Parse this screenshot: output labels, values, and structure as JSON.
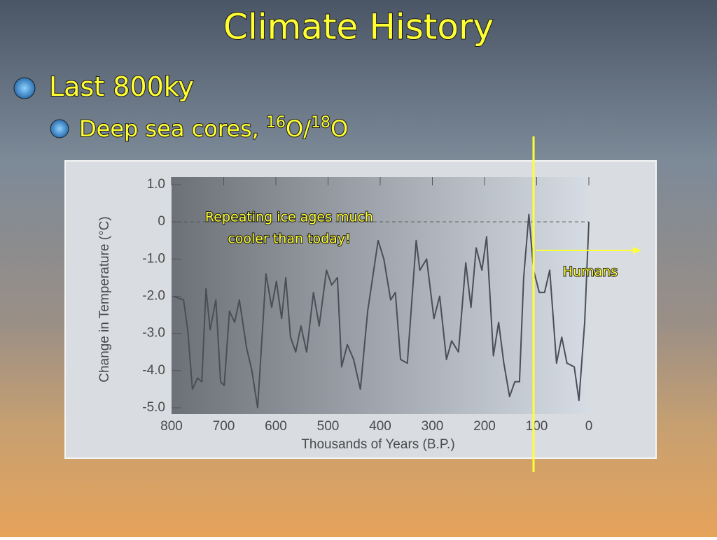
{
  "slide": {
    "title": "Climate History",
    "bullets": [
      {
        "segments": [
          {
            "text": "Last 800ky"
          }
        ]
      },
      {
        "segments": [
          {
            "text": "Deep sea cores, "
          },
          {
            "text": "16",
            "sup": true
          },
          {
            "text": "O/"
          },
          {
            "text": "18",
            "sup": true
          },
          {
            "text": "O"
          }
        ]
      }
    ]
  },
  "chart_data": {
    "type": "line",
    "xlabel": "Thousands of Years (B.P.)",
    "ylabel": "Change in Temperature (°C)",
    "annotation": [
      "Repeating ice ages much",
      "cooler than today!"
    ],
    "marker_label": "Humans",
    "color": "#4a4f57",
    "reference_line": 0,
    "x": [
      796,
      777,
      769,
      760,
      750,
      742,
      734,
      726,
      715,
      706,
      699,
      689,
      679,
      670,
      656,
      646,
      635,
      619,
      608,
      599,
      589,
      581,
      572,
      562,
      552,
      541,
      528,
      517,
      503,
      493,
      482,
      474,
      463,
      451,
      438,
      424,
      404,
      393,
      380,
      371,
      361,
      348,
      331,
      324,
      311,
      297,
      286,
      273,
      263,
      250,
      236,
      226,
      216,
      205,
      196,
      183,
      173,
      163,
      152,
      142,
      133,
      125,
      115,
      106,
      95,
      85,
      75,
      62,
      52,
      42,
      28,
      19,
      8,
      0
    ],
    "values": [
      -2.0,
      -2.1,
      -2.9,
      -4.5,
      -4.2,
      -4.3,
      -1.8,
      -2.9,
      -2.1,
      -4.3,
      -4.4,
      -2.4,
      -2.7,
      -2.1,
      -3.4,
      -4.0,
      -5.0,
      -1.4,
      -2.3,
      -1.6,
      -2.6,
      -1.5,
      -3.1,
      -3.5,
      -2.8,
      -3.5,
      -1.9,
      -2.8,
      -1.3,
      -1.7,
      -1.5,
      -3.9,
      -3.3,
      -3.7,
      -4.5,
      -2.4,
      -0.5,
      -1.0,
      -2.1,
      -1.9,
      -3.7,
      -3.8,
      -0.5,
      -1.3,
      -1.0,
      -2.6,
      -2.0,
      -3.7,
      -3.2,
      -3.5,
      -1.1,
      -2.3,
      -0.7,
      -1.3,
      -0.4,
      -3.6,
      -2.7,
      -3.8,
      -4.7,
      -4.3,
      -4.3,
      -1.5,
      0.2,
      -1.3,
      -1.9,
      -1.9,
      -1.3,
      -3.8,
      -3.1,
      -3.8,
      -3.9,
      -4.8,
      -2.7,
      0.0
    ],
    "xlim": [
      800,
      0
    ],
    "xticks": [
      800,
      700,
      600,
      500,
      400,
      300,
      200,
      100,
      0
    ],
    "ylim": [
      1,
      -5
    ],
    "yticks": [
      {
        "value": 1,
        "label": "1.0"
      },
      0,
      {
        "value": -1,
        "label": "-1.0"
      },
      {
        "value": -2,
        "label": "-2.0"
      },
      {
        "value": -3,
        "label": "-3.0"
      },
      {
        "value": -4,
        "label": "-4.0"
      },
      {
        "value": -5,
        "label": "-5.0"
      }
    ]
  }
}
